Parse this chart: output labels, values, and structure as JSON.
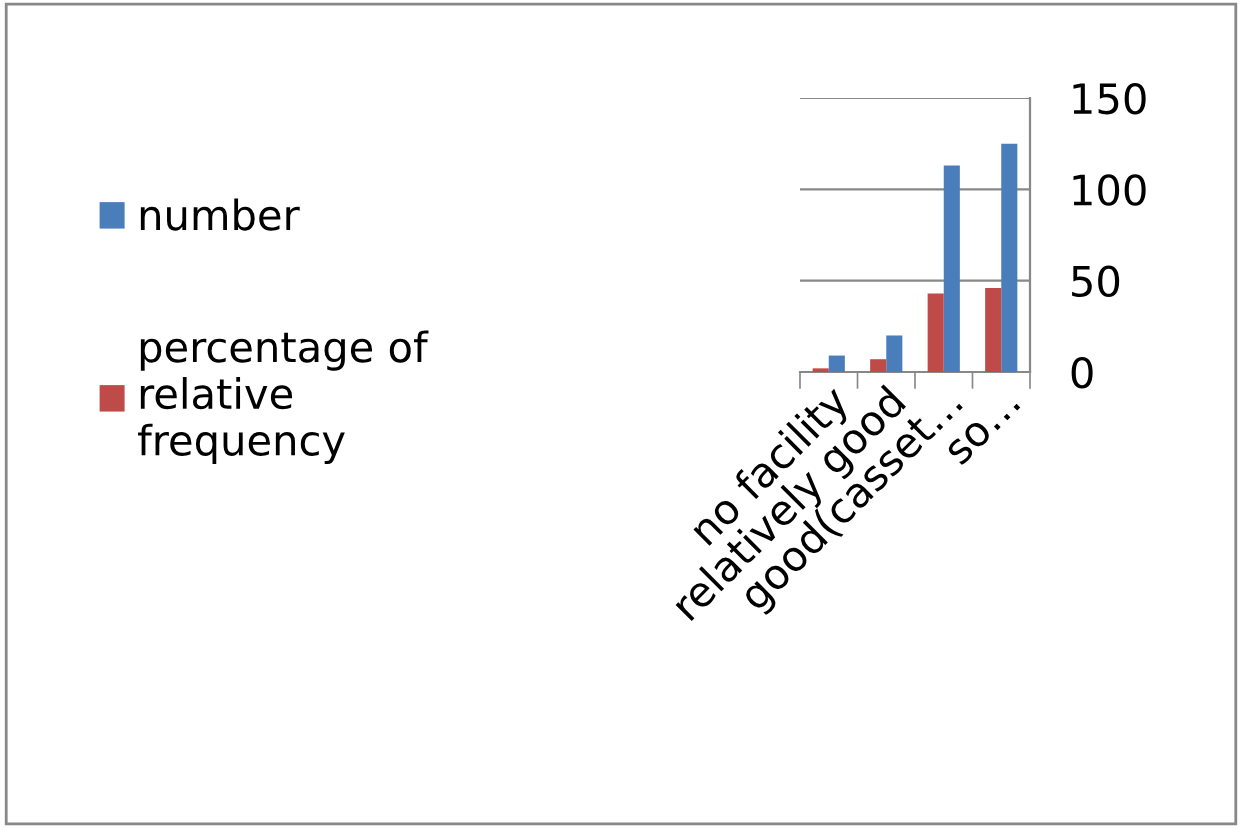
{
  "chart_data": {
    "type": "bar",
    "categories": [
      "no facility",
      "relatively good",
      "good(casset…",
      "so…"
    ],
    "series": [
      {
        "name": "number",
        "color": "#4a7ebb",
        "values": [
          9,
          20,
          113,
          125
        ]
      },
      {
        "name": "percentage of\nrelative\nfrequency",
        "color": "#be4b48",
        "values": [
          2,
          7,
          43,
          46
        ]
      }
    ],
    "ylim": [
      0,
      150
    ],
    "yticks": [
      0,
      50,
      100,
      150
    ],
    "grid": "y",
    "legend": "left"
  }
}
